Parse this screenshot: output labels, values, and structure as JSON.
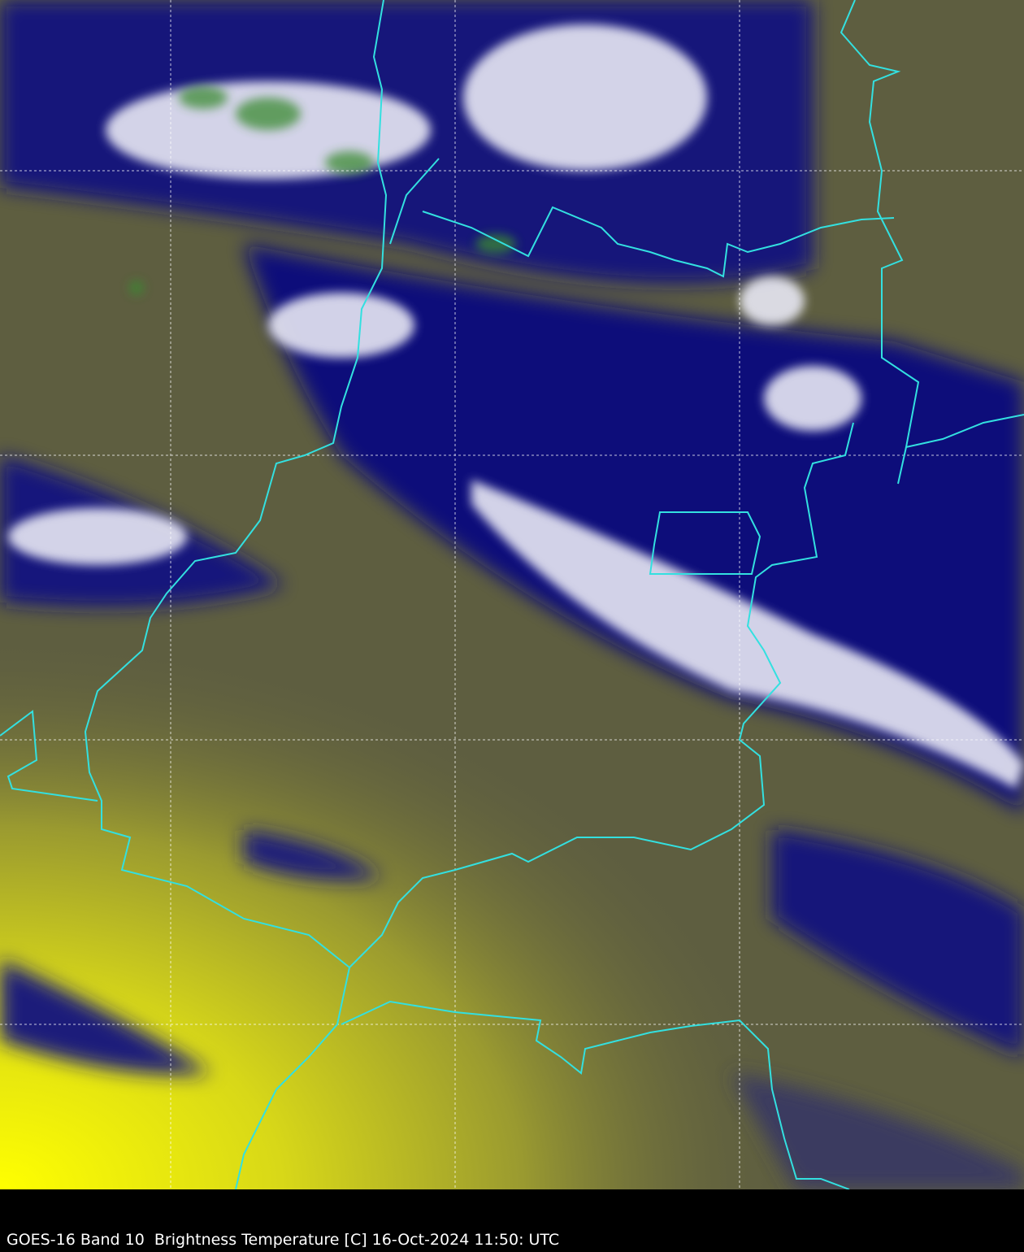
{
  "caption": "GOES-16 Band 10  Brightness Temperature [C] 16-Oct-2024 11:50: UTC",
  "colors": {
    "background": "#000000",
    "warm": "#ffff00",
    "mid": "#5e5e40",
    "cold": "#0c0c78",
    "coldest": "#ffffff",
    "very_cold": "#3a8a30",
    "borders": "#33e0e0",
    "gridlines": "#ffffff"
  }
}
